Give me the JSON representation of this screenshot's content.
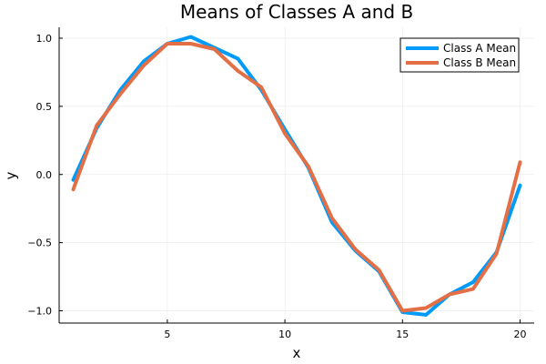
{
  "chart_data": {
    "type": "line",
    "title": "Means of Classes A and B",
    "xlabel": "x",
    "ylabel": "y",
    "xlim": [
      0.4,
      20.6
    ],
    "ylim": [
      -1.09,
      1.08
    ],
    "x_ticks": [
      5,
      10,
      15,
      20
    ],
    "y_ticks": [
      -1.0,
      -0.5,
      0.0,
      0.5,
      1.0
    ],
    "x_tick_labels": [
      "5",
      "10",
      "15",
      "20"
    ],
    "y_tick_labels": [
      "−1.0",
      "−0.5",
      "0.0",
      "0.5",
      "1.0"
    ],
    "grid": true,
    "legend_position": "top-right",
    "x": [
      1,
      2,
      3,
      4,
      5,
      6,
      7,
      8,
      9,
      10,
      11,
      12,
      13,
      14,
      15,
      16,
      17,
      18,
      19,
      20
    ],
    "series": [
      {
        "name": "Class A Mean",
        "color": "#009af9",
        "values": [
          -0.04,
          0.34,
          0.62,
          0.83,
          0.96,
          1.01,
          0.93,
          0.85,
          0.62,
          0.33,
          0.05,
          -0.35,
          -0.56,
          -0.71,
          -1.01,
          -1.03,
          -0.88,
          -0.79,
          -0.57,
          -0.08
        ]
      },
      {
        "name": "Class B Mean",
        "color": "#e26f46",
        "values": [
          -0.11,
          0.36,
          0.59,
          0.8,
          0.96,
          0.96,
          0.92,
          0.76,
          0.64,
          0.3,
          0.06,
          -0.32,
          -0.55,
          -0.7,
          -1.0,
          -0.98,
          -0.88,
          -0.84,
          -0.58,
          0.09
        ]
      }
    ]
  }
}
